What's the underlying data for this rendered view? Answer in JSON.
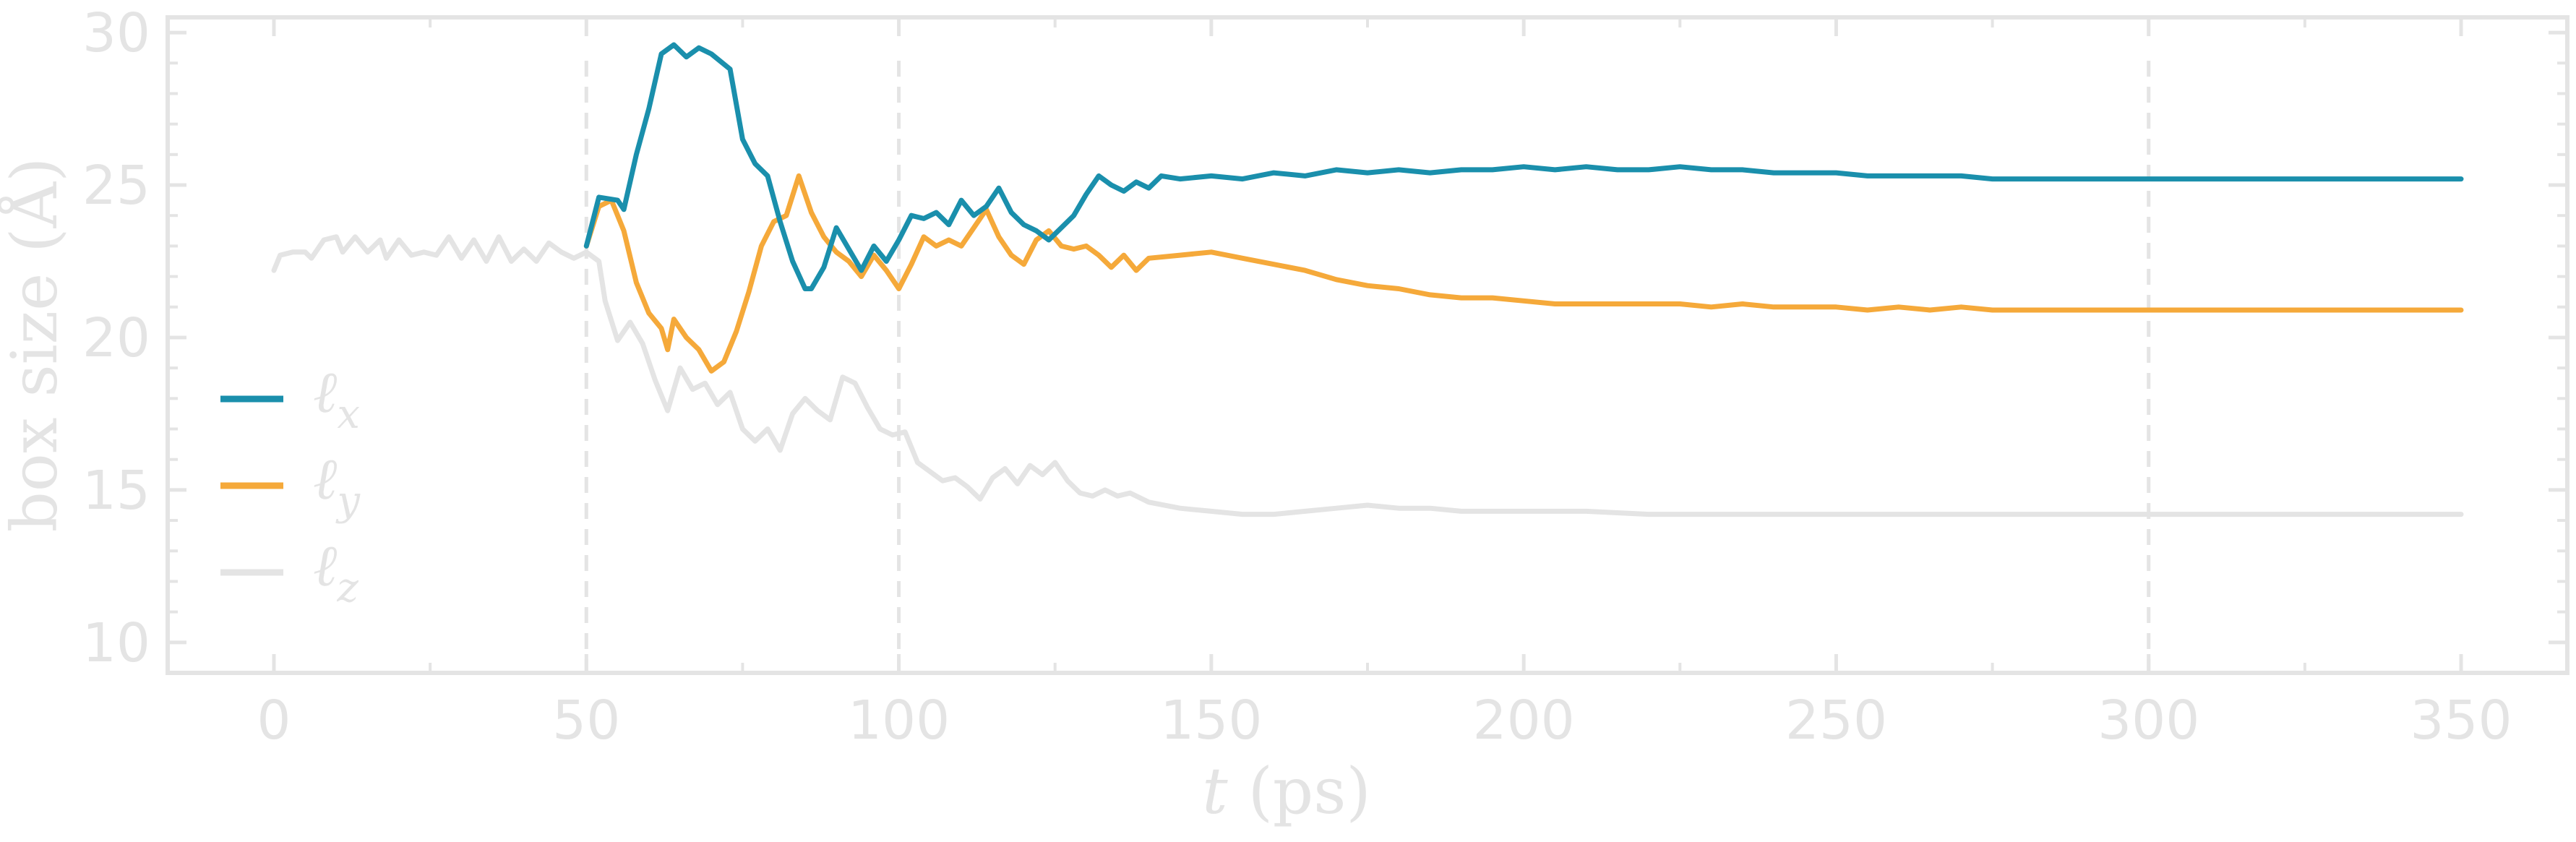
{
  "chart_data": {
    "type": "line",
    "xlabel_var": "t",
    "xlabel_unit": "(ps)",
    "ylabel": "box  size (Å)",
    "xlim": [
      -17,
      367
    ],
    "ylim": [
      9.0,
      30.5
    ],
    "xticks": [
      0,
      50,
      100,
      150,
      200,
      250,
      300,
      350
    ],
    "yticks": [
      10,
      15,
      20,
      25,
      30
    ],
    "vlines": [
      50,
      100,
      300
    ],
    "grid": false,
    "legend_position": "center-left",
    "series": [
      {
        "name_base": "ℓ",
        "name_sub": "x",
        "color": "#1a8fac",
        "points": [
          [
            50,
            23.0
          ],
          [
            52,
            24.6
          ],
          [
            55,
            24.5
          ],
          [
            56,
            24.2
          ],
          [
            58,
            26.0
          ],
          [
            60,
            27.5
          ],
          [
            62,
            29.3
          ],
          [
            64,
            29.6
          ],
          [
            66,
            29.2
          ],
          [
            68,
            29.5
          ],
          [
            70,
            29.3
          ],
          [
            73,
            28.8
          ],
          [
            75,
            26.5
          ],
          [
            77,
            25.7
          ],
          [
            79,
            25.3
          ],
          [
            81,
            23.8
          ],
          [
            83,
            22.5
          ],
          [
            85,
            21.6
          ],
          [
            86,
            21.6
          ],
          [
            88,
            22.3
          ],
          [
            90,
            23.6
          ],
          [
            92,
            22.9
          ],
          [
            94,
            22.2
          ],
          [
            96,
            23.0
          ],
          [
            98,
            22.5
          ],
          [
            100,
            23.2
          ],
          [
            102,
            24.0
          ],
          [
            104,
            23.9
          ],
          [
            106,
            24.1
          ],
          [
            108,
            23.7
          ],
          [
            110,
            24.5
          ],
          [
            112,
            24.0
          ],
          [
            114,
            24.3
          ],
          [
            116,
            24.9
          ],
          [
            118,
            24.1
          ],
          [
            120,
            23.7
          ],
          [
            122,
            23.5
          ],
          [
            124,
            23.2
          ],
          [
            126,
            23.6
          ],
          [
            128,
            24.0
          ],
          [
            130,
            24.7
          ],
          [
            132,
            25.3
          ],
          [
            134,
            25.0
          ],
          [
            136,
            24.8
          ],
          [
            138,
            25.1
          ],
          [
            140,
            24.9
          ],
          [
            142,
            25.3
          ],
          [
            145,
            25.2
          ],
          [
            150,
            25.3
          ],
          [
            155,
            25.2
          ],
          [
            160,
            25.4
          ],
          [
            165,
            25.3
          ],
          [
            170,
            25.5
          ],
          [
            175,
            25.4
          ],
          [
            180,
            25.5
          ],
          [
            185,
            25.4
          ],
          [
            190,
            25.5
          ],
          [
            195,
            25.5
          ],
          [
            200,
            25.6
          ],
          [
            205,
            25.5
          ],
          [
            210,
            25.6
          ],
          [
            215,
            25.5
          ],
          [
            220,
            25.5
          ],
          [
            225,
            25.6
          ],
          [
            230,
            25.5
          ],
          [
            235,
            25.5
          ],
          [
            240,
            25.4
          ],
          [
            245,
            25.4
          ],
          [
            250,
            25.4
          ],
          [
            255,
            25.3
          ],
          [
            260,
            25.3
          ],
          [
            265,
            25.3
          ],
          [
            270,
            25.3
          ],
          [
            275,
            25.2
          ],
          [
            280,
            25.2
          ],
          [
            285,
            25.2
          ],
          [
            290,
            25.2
          ],
          [
            295,
            25.2
          ],
          [
            300,
            25.2
          ],
          [
            310,
            25.2
          ],
          [
            320,
            25.2
          ],
          [
            330,
            25.2
          ],
          [
            340,
            25.2
          ],
          [
            350,
            25.2
          ]
        ]
      },
      {
        "name_base": "ℓ",
        "name_sub": "y",
        "color": "#f5a93a",
        "points": [
          [
            50,
            23.0
          ],
          [
            52,
            24.3
          ],
          [
            54,
            24.5
          ],
          [
            56,
            23.5
          ],
          [
            58,
            21.8
          ],
          [
            60,
            20.8
          ],
          [
            62,
            20.3
          ],
          [
            63,
            19.6
          ],
          [
            64,
            20.6
          ],
          [
            66,
            20.0
          ],
          [
            68,
            19.6
          ],
          [
            70,
            18.9
          ],
          [
            72,
            19.2
          ],
          [
            74,
            20.2
          ],
          [
            76,
            21.5
          ],
          [
            78,
            23.0
          ],
          [
            80,
            23.8
          ],
          [
            82,
            24.0
          ],
          [
            84,
            25.3
          ],
          [
            86,
            24.1
          ],
          [
            88,
            23.3
          ],
          [
            90,
            22.8
          ],
          [
            92,
            22.5
          ],
          [
            94,
            22.0
          ],
          [
            96,
            22.7
          ],
          [
            98,
            22.2
          ],
          [
            100,
            21.6
          ],
          [
            102,
            22.4
          ],
          [
            104,
            23.3
          ],
          [
            106,
            23.0
          ],
          [
            108,
            23.2
          ],
          [
            110,
            23.0
          ],
          [
            112,
            23.6
          ],
          [
            114,
            24.2
          ],
          [
            116,
            23.3
          ],
          [
            118,
            22.7
          ],
          [
            120,
            22.4
          ],
          [
            122,
            23.2
          ],
          [
            124,
            23.5
          ],
          [
            126,
            23.0
          ],
          [
            128,
            22.9
          ],
          [
            130,
            23.0
          ],
          [
            132,
            22.7
          ],
          [
            134,
            22.3
          ],
          [
            136,
            22.7
          ],
          [
            138,
            22.2
          ],
          [
            140,
            22.6
          ],
          [
            145,
            22.7
          ],
          [
            150,
            22.8
          ],
          [
            155,
            22.6
          ],
          [
            160,
            22.4
          ],
          [
            165,
            22.2
          ],
          [
            170,
            21.9
          ],
          [
            175,
            21.7
          ],
          [
            180,
            21.6
          ],
          [
            185,
            21.4
          ],
          [
            190,
            21.3
          ],
          [
            195,
            21.3
          ],
          [
            200,
            21.2
          ],
          [
            205,
            21.1
          ],
          [
            210,
            21.1
          ],
          [
            215,
            21.1
          ],
          [
            220,
            21.1
          ],
          [
            225,
            21.1
          ],
          [
            230,
            21.0
          ],
          [
            235,
            21.1
          ],
          [
            240,
            21.0
          ],
          [
            245,
            21.0
          ],
          [
            250,
            21.0
          ],
          [
            255,
            20.9
          ],
          [
            260,
            21.0
          ],
          [
            265,
            20.9
          ],
          [
            270,
            21.0
          ],
          [
            275,
            20.9
          ],
          [
            280,
            20.9
          ],
          [
            285,
            20.9
          ],
          [
            290,
            20.9
          ],
          [
            295,
            20.9
          ],
          [
            300,
            20.9
          ],
          [
            310,
            20.9
          ],
          [
            320,
            20.9
          ],
          [
            330,
            20.9
          ],
          [
            340,
            20.9
          ],
          [
            350,
            20.9
          ]
        ]
      },
      {
        "name_base": "ℓ",
        "name_sub": "z",
        "color": "#e4e4e4",
        "points": [
          [
            0,
            22.2
          ],
          [
            1,
            22.7
          ],
          [
            3,
            22.8
          ],
          [
            5,
            22.8
          ],
          [
            6,
            22.6
          ],
          [
            8,
            23.2
          ],
          [
            10,
            23.3
          ],
          [
            11,
            22.8
          ],
          [
            13,
            23.3
          ],
          [
            15,
            22.8
          ],
          [
            17,
            23.2
          ],
          [
            18,
            22.6
          ],
          [
            20,
            23.2
          ],
          [
            22,
            22.7
          ],
          [
            24,
            22.8
          ],
          [
            26,
            22.7
          ],
          [
            28,
            23.3
          ],
          [
            30,
            22.6
          ],
          [
            32,
            23.2
          ],
          [
            34,
            22.5
          ],
          [
            36,
            23.3
          ],
          [
            38,
            22.5
          ],
          [
            40,
            22.9
          ],
          [
            42,
            22.5
          ],
          [
            44,
            23.1
          ],
          [
            46,
            22.8
          ],
          [
            48,
            22.6
          ],
          [
            50,
            22.8
          ],
          [
            52,
            22.5
          ],
          [
            53,
            21.2
          ],
          [
            55,
            19.9
          ],
          [
            57,
            20.5
          ],
          [
            59,
            19.8
          ],
          [
            61,
            18.6
          ],
          [
            63,
            17.6
          ],
          [
            65,
            19.0
          ],
          [
            67,
            18.3
          ],
          [
            69,
            18.5
          ],
          [
            71,
            17.8
          ],
          [
            73,
            18.2
          ],
          [
            75,
            17.0
          ],
          [
            77,
            16.6
          ],
          [
            79,
            17.0
          ],
          [
            81,
            16.3
          ],
          [
            83,
            17.5
          ],
          [
            85,
            18.0
          ],
          [
            87,
            17.6
          ],
          [
            89,
            17.3
          ],
          [
            91,
            18.7
          ],
          [
            93,
            18.5
          ],
          [
            95,
            17.7
          ],
          [
            97,
            17.0
          ],
          [
            99,
            16.8
          ],
          [
            101,
            16.9
          ],
          [
            103,
            15.9
          ],
          [
            105,
            15.6
          ],
          [
            107,
            15.3
          ],
          [
            109,
            15.4
          ],
          [
            111,
            15.1
          ],
          [
            113,
            14.7
          ],
          [
            115,
            15.4
          ],
          [
            117,
            15.7
          ],
          [
            119,
            15.2
          ],
          [
            121,
            15.8
          ],
          [
            123,
            15.5
          ],
          [
            125,
            15.9
          ],
          [
            127,
            15.3
          ],
          [
            129,
            14.9
          ],
          [
            131,
            14.8
          ],
          [
            133,
            15.0
          ],
          [
            135,
            14.8
          ],
          [
            137,
            14.9
          ],
          [
            140,
            14.6
          ],
          [
            145,
            14.4
          ],
          [
            150,
            14.3
          ],
          [
            155,
            14.2
          ],
          [
            160,
            14.2
          ],
          [
            165,
            14.3
          ],
          [
            170,
            14.4
          ],
          [
            175,
            14.5
          ],
          [
            180,
            14.4
          ],
          [
            185,
            14.4
          ],
          [
            190,
            14.3
          ],
          [
            195,
            14.3
          ],
          [
            200,
            14.3
          ],
          [
            205,
            14.3
          ],
          [
            210,
            14.3
          ],
          [
            220,
            14.2
          ],
          [
            230,
            14.2
          ],
          [
            240,
            14.2
          ],
          [
            250,
            14.2
          ],
          [
            260,
            14.2
          ],
          [
            270,
            14.2
          ],
          [
            280,
            14.2
          ],
          [
            290,
            14.2
          ],
          [
            300,
            14.2
          ],
          [
            320,
            14.2
          ],
          [
            340,
            14.2
          ],
          [
            350,
            14.2
          ]
        ]
      }
    ]
  }
}
